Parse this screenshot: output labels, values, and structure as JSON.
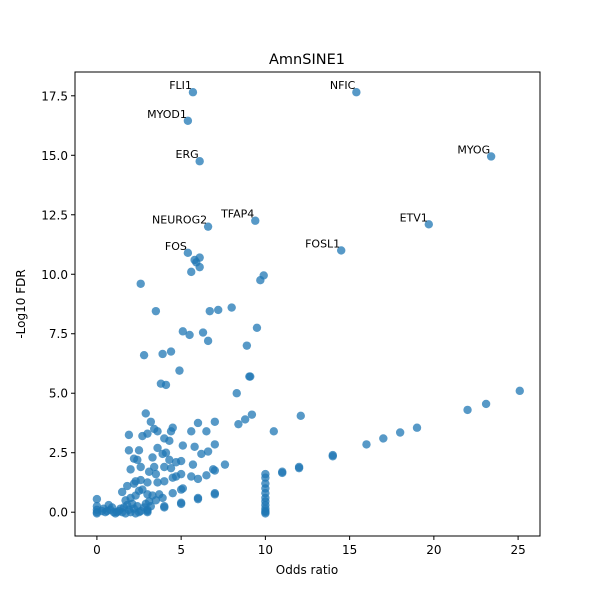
{
  "chart_data": {
    "type": "scatter",
    "title": "AmnSINE1",
    "xlabel": "Odds ratio",
    "ylabel": "-Log10 FDR",
    "xlim": [
      -1.3,
      26.3
    ],
    "ylim": [
      -1.0,
      18.5
    ],
    "xticks": [
      0,
      5,
      10,
      15,
      20,
      25
    ],
    "yticks": [
      0.0,
      2.5,
      5.0,
      7.5,
      10.0,
      12.5,
      15.0,
      17.5
    ],
    "ytick_labels": [
      "0.0",
      "2.5",
      "5.0",
      "7.5",
      "10.0",
      "12.5",
      "15.0",
      "17.5"
    ],
    "grid": false,
    "point_color": "#1f77b4",
    "point_opacity": 0.75,
    "annotations": [
      {
        "label": "FLI1",
        "x": 5.7,
        "y": 17.65
      },
      {
        "label": "NFIC",
        "x": 15.4,
        "y": 17.65
      },
      {
        "label": "MYOD1",
        "x": 5.4,
        "y": 16.45
      },
      {
        "label": "ERG",
        "x": 6.1,
        "y": 14.75
      },
      {
        "label": "MYOG",
        "x": 23.4,
        "y": 14.95
      },
      {
        "label": "TFAP4",
        "x": 9.4,
        "y": 12.25
      },
      {
        "label": "NEUROG2",
        "x": 6.6,
        "y": 12.0
      },
      {
        "label": "ETV1",
        "x": 19.7,
        "y": 12.1
      },
      {
        "label": "FOSL1",
        "x": 14.5,
        "y": 11.0
      },
      {
        "label": "FOS",
        "x": 5.4,
        "y": 10.9
      }
    ],
    "points": [
      {
        "x": 5.7,
        "y": 17.65
      },
      {
        "x": 15.4,
        "y": 17.65
      },
      {
        "x": 5.4,
        "y": 16.45
      },
      {
        "x": 6.1,
        "y": 14.75
      },
      {
        "x": 23.4,
        "y": 14.95
      },
      {
        "x": 9.4,
        "y": 12.25
      },
      {
        "x": 6.6,
        "y": 12.0
      },
      {
        "x": 19.7,
        "y": 12.1
      },
      {
        "x": 14.5,
        "y": 11.0
      },
      {
        "x": 5.4,
        "y": 10.9
      },
      {
        "x": 5.8,
        "y": 10.6
      },
      {
        "x": 6.1,
        "y": 10.7
      },
      {
        "x": 5.9,
        "y": 10.5
      },
      {
        "x": 6.1,
        "y": 10.3
      },
      {
        "x": 5.6,
        "y": 10.1
      },
      {
        "x": 9.9,
        "y": 9.95
      },
      {
        "x": 9.7,
        "y": 9.75
      },
      {
        "x": 2.6,
        "y": 9.6
      },
      {
        "x": 3.5,
        "y": 8.45
      },
      {
        "x": 6.7,
        "y": 8.45
      },
      {
        "x": 7.2,
        "y": 8.5
      },
      {
        "x": 8.0,
        "y": 8.6
      },
      {
        "x": 5.1,
        "y": 7.6
      },
      {
        "x": 5.5,
        "y": 7.45
      },
      {
        "x": 6.3,
        "y": 7.55
      },
      {
        "x": 6.6,
        "y": 7.2
      },
      {
        "x": 9.5,
        "y": 7.75
      },
      {
        "x": 8.9,
        "y": 7.0
      },
      {
        "x": 2.8,
        "y": 6.6
      },
      {
        "x": 3.9,
        "y": 6.65
      },
      {
        "x": 4.4,
        "y": 6.75
      },
      {
        "x": 4.9,
        "y": 5.95
      },
      {
        "x": 3.8,
        "y": 5.4
      },
      {
        "x": 4.1,
        "y": 5.35
      },
      {
        "x": 9.1,
        "y": 5.7
      },
      {
        "x": 9.05,
        "y": 5.7
      },
      {
        "x": 8.3,
        "y": 5.0
      },
      {
        "x": 25.1,
        "y": 5.1
      },
      {
        "x": 23.1,
        "y": 4.55
      },
      {
        "x": 22.0,
        "y": 4.3
      },
      {
        "x": 12.1,
        "y": 4.05
      },
      {
        "x": 9.2,
        "y": 4.1
      },
      {
        "x": 8.8,
        "y": 3.9
      },
      {
        "x": 8.4,
        "y": 3.7
      },
      {
        "x": 6.0,
        "y": 3.75
      },
      {
        "x": 7.0,
        "y": 3.8
      },
      {
        "x": 19.0,
        "y": 3.55
      },
      {
        "x": 18.0,
        "y": 3.35
      },
      {
        "x": 17.0,
        "y": 3.1
      },
      {
        "x": 16.0,
        "y": 2.85
      },
      {
        "x": 10.5,
        "y": 3.4
      },
      {
        "x": 2.9,
        "y": 4.15
      },
      {
        "x": 3.2,
        "y": 3.8
      },
      {
        "x": 3.4,
        "y": 3.5
      },
      {
        "x": 3.6,
        "y": 3.4
      },
      {
        "x": 4.5,
        "y": 3.55
      },
      {
        "x": 4.4,
        "y": 3.4
      },
      {
        "x": 5.6,
        "y": 3.4
      },
      {
        "x": 6.5,
        "y": 3.4
      },
      {
        "x": 1.9,
        "y": 3.25
      },
      {
        "x": 2.7,
        "y": 3.2
      },
      {
        "x": 3.0,
        "y": 3.3
      },
      {
        "x": 4.0,
        "y": 3.1
      },
      {
        "x": 4.3,
        "y": 3.0
      },
      {
        "x": 7.0,
        "y": 2.85
      },
      {
        "x": 5.1,
        "y": 2.8
      },
      {
        "x": 5.8,
        "y": 2.75
      },
      {
        "x": 1.9,
        "y": 2.6
      },
      {
        "x": 2.5,
        "y": 2.6
      },
      {
        "x": 3.6,
        "y": 2.7
      },
      {
        "x": 3.9,
        "y": 2.45
      },
      {
        "x": 4.1,
        "y": 2.5
      },
      {
        "x": 6.2,
        "y": 2.45
      },
      {
        "x": 6.6,
        "y": 2.55
      },
      {
        "x": 2.2,
        "y": 2.25
      },
      {
        "x": 2.4,
        "y": 2.2
      },
      {
        "x": 3.3,
        "y": 2.3
      },
      {
        "x": 4.3,
        "y": 2.2
      },
      {
        "x": 4.7,
        "y": 2.1
      },
      {
        "x": 5.0,
        "y": 2.15
      },
      {
        "x": 5.7,
        "y": 2.0
      },
      {
        "x": 7.6,
        "y": 2.0
      },
      {
        "x": 2.0,
        "y": 1.8
      },
      {
        "x": 2.6,
        "y": 1.9
      },
      {
        "x": 3.4,
        "y": 1.9
      },
      {
        "x": 4.4,
        "y": 1.85
      },
      {
        "x": 4.0,
        "y": 1.9
      },
      {
        "x": 6.9,
        "y": 1.8
      },
      {
        "x": 7.0,
        "y": 1.75
      },
      {
        "x": 12.0,
        "y": 1.9
      },
      {
        "x": 12.0,
        "y": 1.85
      },
      {
        "x": 11.0,
        "y": 1.7
      },
      {
        "x": 11.0,
        "y": 1.65
      },
      {
        "x": 14.0,
        "y": 2.4
      },
      {
        "x": 14.0,
        "y": 2.35
      },
      {
        "x": 10.0,
        "y": 1.6
      },
      {
        "x": 10.0,
        "y": 1.45
      },
      {
        "x": 10.0,
        "y": 1.2
      },
      {
        "x": 10.0,
        "y": 1.0
      },
      {
        "x": 10.0,
        "y": 0.8
      },
      {
        "x": 10.0,
        "y": 0.6
      },
      {
        "x": 10.0,
        "y": 0.45
      },
      {
        "x": 10.0,
        "y": 0.3
      },
      {
        "x": 10.0,
        "y": 0.15
      },
      {
        "x": 10.0,
        "y": 0.05
      },
      {
        "x": 10.0,
        "y": 0.0
      },
      {
        "x": 10.0,
        "y": -0.05
      },
      {
        "x": 3.1,
        "y": 1.7
      },
      {
        "x": 3.5,
        "y": 1.6
      },
      {
        "x": 4.5,
        "y": 1.45
      },
      {
        "x": 4.7,
        "y": 1.5
      },
      {
        "x": 5.0,
        "y": 1.6
      },
      {
        "x": 5.6,
        "y": 1.5
      },
      {
        "x": 6.5,
        "y": 1.55
      },
      {
        "x": 6.0,
        "y": 1.4
      },
      {
        "x": 2.6,
        "y": 1.35
      },
      {
        "x": 2.3,
        "y": 1.3
      },
      {
        "x": 1.5,
        "y": 0.85
      },
      {
        "x": 1.8,
        "y": 1.1
      },
      {
        "x": 2.2,
        "y": 1.2
      },
      {
        "x": 3.0,
        "y": 1.25
      },
      {
        "x": 3.6,
        "y": 1.25
      },
      {
        "x": 4.0,
        "y": 1.3
      },
      {
        "x": 2.5,
        "y": 0.9
      },
      {
        "x": 2.7,
        "y": 0.95
      },
      {
        "x": 3.0,
        "y": 0.75
      },
      {
        "x": 3.3,
        "y": 0.7
      },
      {
        "x": 3.7,
        "y": 0.75
      },
      {
        "x": 4.5,
        "y": 0.8
      },
      {
        "x": 5.1,
        "y": 1.0
      },
      {
        "x": 5.0,
        "y": 0.95
      },
      {
        "x": 7.0,
        "y": 0.8
      },
      {
        "x": 7.0,
        "y": 0.75
      },
      {
        "x": 2.3,
        "y": 0.7
      },
      {
        "x": 2.0,
        "y": 0.6
      },
      {
        "x": 1.7,
        "y": 0.5
      },
      {
        "x": 3.5,
        "y": 0.5
      },
      {
        "x": 3.1,
        "y": 0.45
      },
      {
        "x": 3.9,
        "y": 0.6
      },
      {
        "x": 6.0,
        "y": 0.6
      },
      {
        "x": 6.0,
        "y": 0.55
      },
      {
        "x": 5.0,
        "y": 0.35
      },
      {
        "x": 5.0,
        "y": 0.4
      },
      {
        "x": 4.0,
        "y": 0.2
      },
      {
        "x": 4.0,
        "y": 0.25
      },
      {
        "x": 3.0,
        "y": 0.1
      },
      {
        "x": 3.0,
        "y": 0.05
      },
      {
        "x": 3.0,
        "y": 0.0
      },
      {
        "x": 2.5,
        "y": 0.0
      },
      {
        "x": 2.0,
        "y": 0.0
      },
      {
        "x": 1.5,
        "y": 0.0
      },
      {
        "x": 1.0,
        "y": 0.0
      },
      {
        "x": 0.5,
        "y": 0.0
      },
      {
        "x": 0.0,
        "y": 0.0
      },
      {
        "x": 0.0,
        "y": 0.1
      },
      {
        "x": 0.0,
        "y": 0.25
      },
      {
        "x": 0.0,
        "y": 0.55
      },
      {
        "x": 0.0,
        "y": -0.05
      },
      {
        "x": 0.6,
        "y": 0.05
      },
      {
        "x": 0.8,
        "y": 0.1
      },
      {
        "x": 0.9,
        "y": 0.2
      },
      {
        "x": 0.7,
        "y": 0.3
      },
      {
        "x": 1.2,
        "y": 0.0
      },
      {
        "x": 1.3,
        "y": 0.05
      },
      {
        "x": 1.4,
        "y": 0.15
      },
      {
        "x": 1.6,
        "y": 0.2
      },
      {
        "x": 1.8,
        "y": 0.3
      },
      {
        "x": 2.1,
        "y": 0.35
      },
      {
        "x": 2.2,
        "y": 0.15
      },
      {
        "x": 2.4,
        "y": 0.25
      },
      {
        "x": 2.6,
        "y": 0.05
      },
      {
        "x": 2.8,
        "y": 0.2
      },
      {
        "x": 1.1,
        "y": -0.05
      },
      {
        "x": 1.7,
        "y": -0.05
      },
      {
        "x": 2.3,
        "y": -0.05
      },
      {
        "x": 0.3,
        "y": 0.05
      },
      {
        "x": 0.4,
        "y": 0.15
      },
      {
        "x": 1.9,
        "y": 0.1
      },
      {
        "x": 2.9,
        "y": 0.35
      },
      {
        "x": 3.2,
        "y": 0.25
      }
    ]
  }
}
